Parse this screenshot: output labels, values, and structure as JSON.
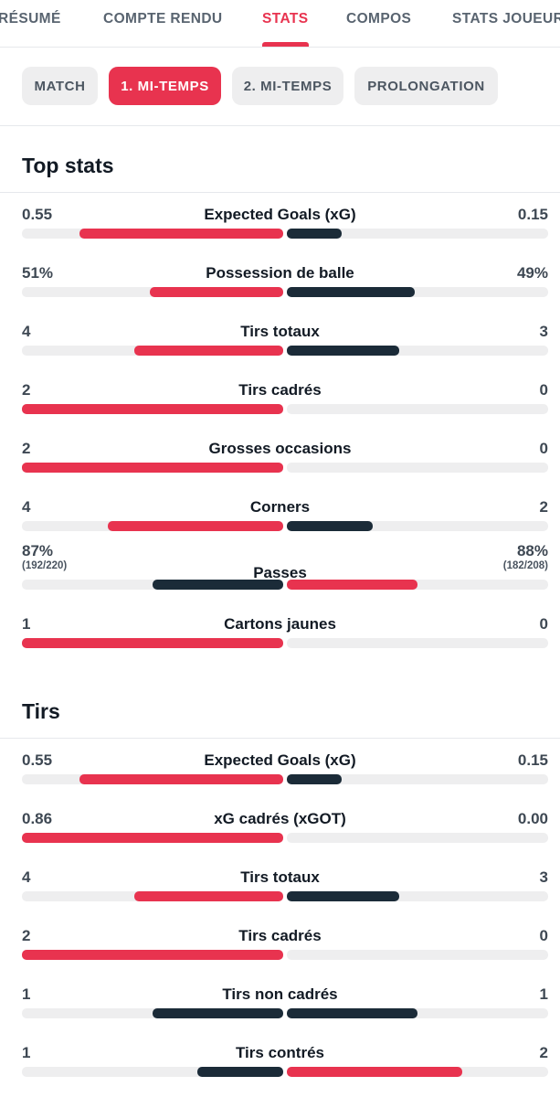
{
  "nav": {
    "tabs": [
      {
        "label": "RÉSUMÉ",
        "active": false
      },
      {
        "label": "COMPTE RENDU",
        "active": false
      },
      {
        "label": "STATS",
        "active": true
      },
      {
        "label": "COMPOS",
        "active": false
      },
      {
        "label": "STATS JOUEUR",
        "active": false
      }
    ]
  },
  "periods": [
    {
      "label": "MATCH",
      "active": false
    },
    {
      "label": "1. MI-TEMPS",
      "active": true
    },
    {
      "label": "2. MI-TEMPS",
      "active": false
    },
    {
      "label": "PROLONGATION",
      "active": false
    }
  ],
  "colors": {
    "accent": "#e8334f",
    "dark": "#1b2b38",
    "track": "#eeeeef"
  },
  "sections": [
    {
      "title": "Top stats",
      "rows": [
        {
          "label": "Expected Goals (xG)",
          "home": "0.55",
          "away": "0.15",
          "home_fill": 0.78,
          "away_fill": 0.21,
          "home_color": "red",
          "away_color": "dark"
        },
        {
          "label": "Possession de balle",
          "home": "51%",
          "away": "49%",
          "home_fill": 0.51,
          "away_fill": 0.49,
          "home_color": "red",
          "away_color": "dark"
        },
        {
          "label": "Tirs totaux",
          "home": "4",
          "away": "3",
          "home_fill": 0.57,
          "away_fill": 0.43,
          "home_color": "red",
          "away_color": "dark"
        },
        {
          "label": "Tirs cadrés",
          "home": "2",
          "away": "0",
          "home_fill": 1.0,
          "away_fill": 0.0,
          "home_color": "red",
          "away_color": "dark"
        },
        {
          "label": "Grosses occasions",
          "home": "2",
          "away": "0",
          "home_fill": 1.0,
          "away_fill": 0.0,
          "home_color": "red",
          "away_color": "dark"
        },
        {
          "label": "Corners",
          "home": "4",
          "away": "2",
          "home_fill": 0.67,
          "away_fill": 0.33,
          "home_color": "red",
          "away_color": "dark"
        },
        {
          "label": "Passes",
          "home": "87%",
          "away": "88%",
          "home_sub": "(192/220)",
          "away_sub": "(182/208)",
          "home_fill": 0.5,
          "away_fill": 0.5,
          "home_color": "dark",
          "away_color": "red"
        },
        {
          "label": "Cartons jaunes",
          "home": "1",
          "away": "0",
          "home_fill": 1.0,
          "away_fill": 0.0,
          "home_color": "red",
          "away_color": "dark"
        }
      ]
    },
    {
      "title": "Tirs",
      "rows": [
        {
          "label": "Expected Goals (xG)",
          "home": "0.55",
          "away": "0.15",
          "home_fill": 0.78,
          "away_fill": 0.21,
          "home_color": "red",
          "away_color": "dark"
        },
        {
          "label": "xG cadrés (xGOT)",
          "home": "0.86",
          "away": "0.00",
          "home_fill": 1.0,
          "away_fill": 0.0,
          "home_color": "red",
          "away_color": "dark"
        },
        {
          "label": "Tirs totaux",
          "home": "4",
          "away": "3",
          "home_fill": 0.57,
          "away_fill": 0.43,
          "home_color": "red",
          "away_color": "dark"
        },
        {
          "label": "Tirs cadrés",
          "home": "2",
          "away": "0",
          "home_fill": 1.0,
          "away_fill": 0.0,
          "home_color": "red",
          "away_color": "dark"
        },
        {
          "label": "Tirs non cadrés",
          "home": "1",
          "away": "1",
          "home_fill": 0.5,
          "away_fill": 0.5,
          "home_color": "dark",
          "away_color": "dark"
        },
        {
          "label": "Tirs contrés",
          "home": "1",
          "away": "2",
          "home_fill": 0.33,
          "away_fill": 0.67,
          "home_color": "dark",
          "away_color": "red"
        }
      ]
    }
  ]
}
